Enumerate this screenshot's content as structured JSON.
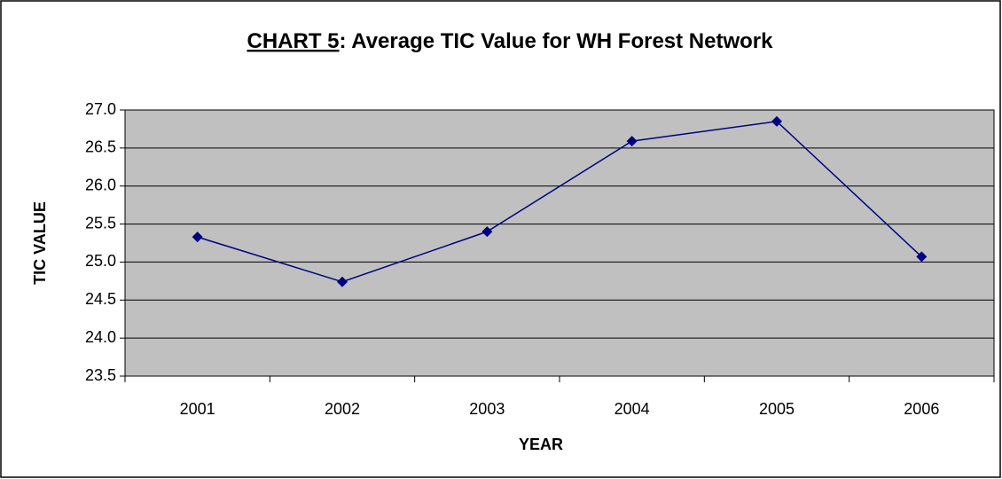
{
  "chart_data": {
    "type": "line",
    "title_label": "CHART 5",
    "title": ":  Average TIC Value for WH Forest Network",
    "x_label": "YEAR",
    "y_label": "TIC VALUE",
    "categories": [
      "2001",
      "2002",
      "2003",
      "2004",
      "2005",
      "2006"
    ],
    "series": [
      {
        "color": "#000080",
        "values": [
          25.33,
          24.74,
          25.4,
          26.59,
          26.85,
          25.07
        ]
      }
    ],
    "ylim": [
      23.5,
      27.0
    ],
    "yticks": [
      23.5,
      {
        "value": 24,
        "label": "24.0"
      },
      24.5,
      {
        "value": 25,
        "label": "25.0"
      },
      25.5,
      {
        "value": 26,
        "label": "26.0"
      },
      26.5,
      {
        "value": 27,
        "label": "27.0"
      }
    ],
    "grid": true,
    "plot_background": "#c0c0c0"
  }
}
